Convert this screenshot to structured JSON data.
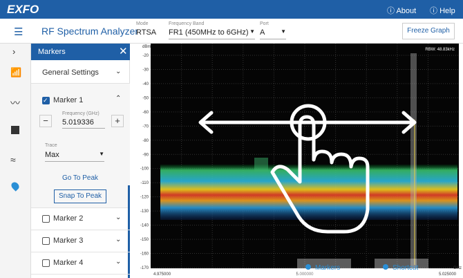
{
  "header": {
    "logo": "EXFO",
    "about": "About",
    "help": "Help"
  },
  "toolbar": {
    "title": "RF Spectrum Analyzer",
    "mode": {
      "label": "Mode",
      "value": "RTSA"
    },
    "band": {
      "label": "Frequency Band",
      "value": "FR1 (450MHz to 6GHz)"
    },
    "port": {
      "label": "Port",
      "value": "A"
    },
    "freeze": "Freeze Graph"
  },
  "markers_panel": {
    "title": "Markers",
    "general": "General Settings",
    "marker1": {
      "label": "Marker 1",
      "checked": true,
      "freq_label": "Frequency (GHz)",
      "freq": "5.019336",
      "trace_label": "Trace",
      "trace": "Max",
      "go": "Go To Peak",
      "snap": "Snap To Peak"
    },
    "others": [
      {
        "label": "Marker 2",
        "checked": false
      },
      {
        "label": "Marker 3",
        "checked": false
      },
      {
        "label": "Marker 4",
        "checked": false
      }
    ]
  },
  "graph": {
    "unit": "dBm",
    "y_labels": [
      "-20",
      "-30",
      "-40",
      "-50",
      "-60",
      "-70",
      "-80",
      "-90",
      "-100",
      "-110",
      "-120",
      "-130",
      "-140",
      "-150",
      "-160",
      "-170"
    ],
    "x_labels": [
      "4.975000",
      "5.000000",
      "5.025000"
    ],
    "x_unit": "GHz",
    "rbw": "RBW: 48.83kHz",
    "buttons": [
      "Markers",
      "Shortcut"
    ]
  }
}
